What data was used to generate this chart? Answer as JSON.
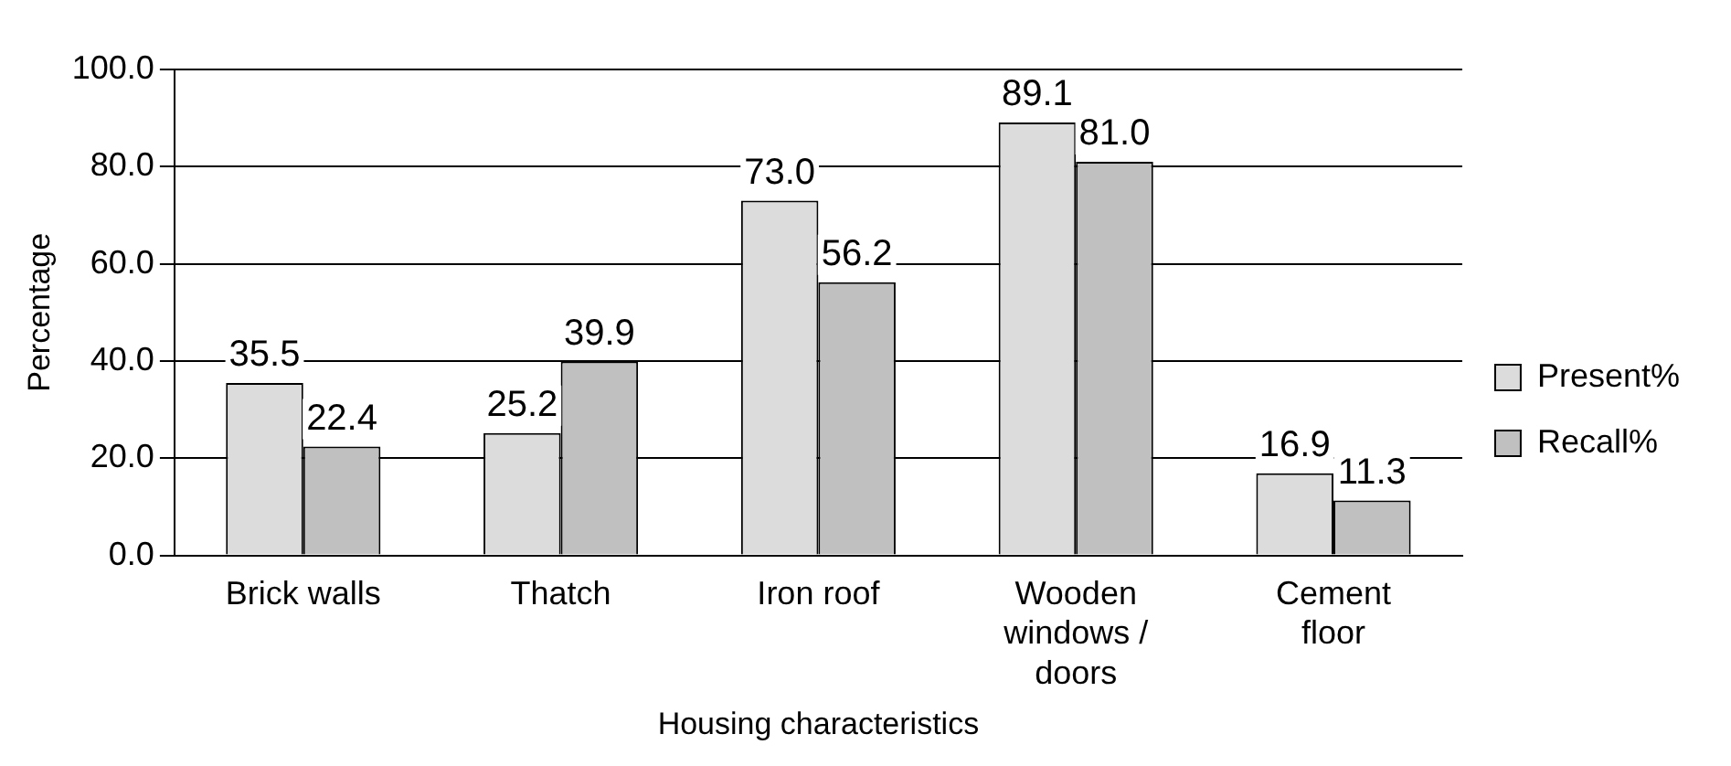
{
  "chart_data": {
    "type": "bar",
    "xlabel": "Housing characteristics",
    "ylabel": "Percentage",
    "categories": [
      "Brick walls",
      "Thatch",
      "Iron roof",
      "Wooden windows / doors",
      "Cement floor"
    ],
    "series": [
      {
        "name": "Present%",
        "color": "#dcdcdc",
        "values": [
          35.5,
          25.2,
          73.0,
          89.1,
          16.9
        ],
        "value_labels": [
          "35.5",
          "25.2",
          "73.0",
          "89.1",
          "16.9"
        ]
      },
      {
        "name": "Recall%",
        "color": "#c0c0c0",
        "values": [
          22.4,
          39.9,
          56.2,
          81.0,
          11.3
        ],
        "value_labels": [
          "22.4",
          "39.9",
          "56.2",
          "81.0",
          "11.3"
        ]
      }
    ],
    "ylim": [
      0,
      100
    ],
    "yticks": [
      {
        "value": 0,
        "label": "0.0"
      },
      {
        "value": 20,
        "label": "20.0"
      },
      {
        "value": 40,
        "label": "40.0"
      },
      {
        "value": 60,
        "label": "60.0"
      },
      {
        "value": 80,
        "label": "80.0"
      },
      {
        "value": 100,
        "label": "100.0"
      }
    ],
    "grid": "y",
    "legend": "right"
  }
}
